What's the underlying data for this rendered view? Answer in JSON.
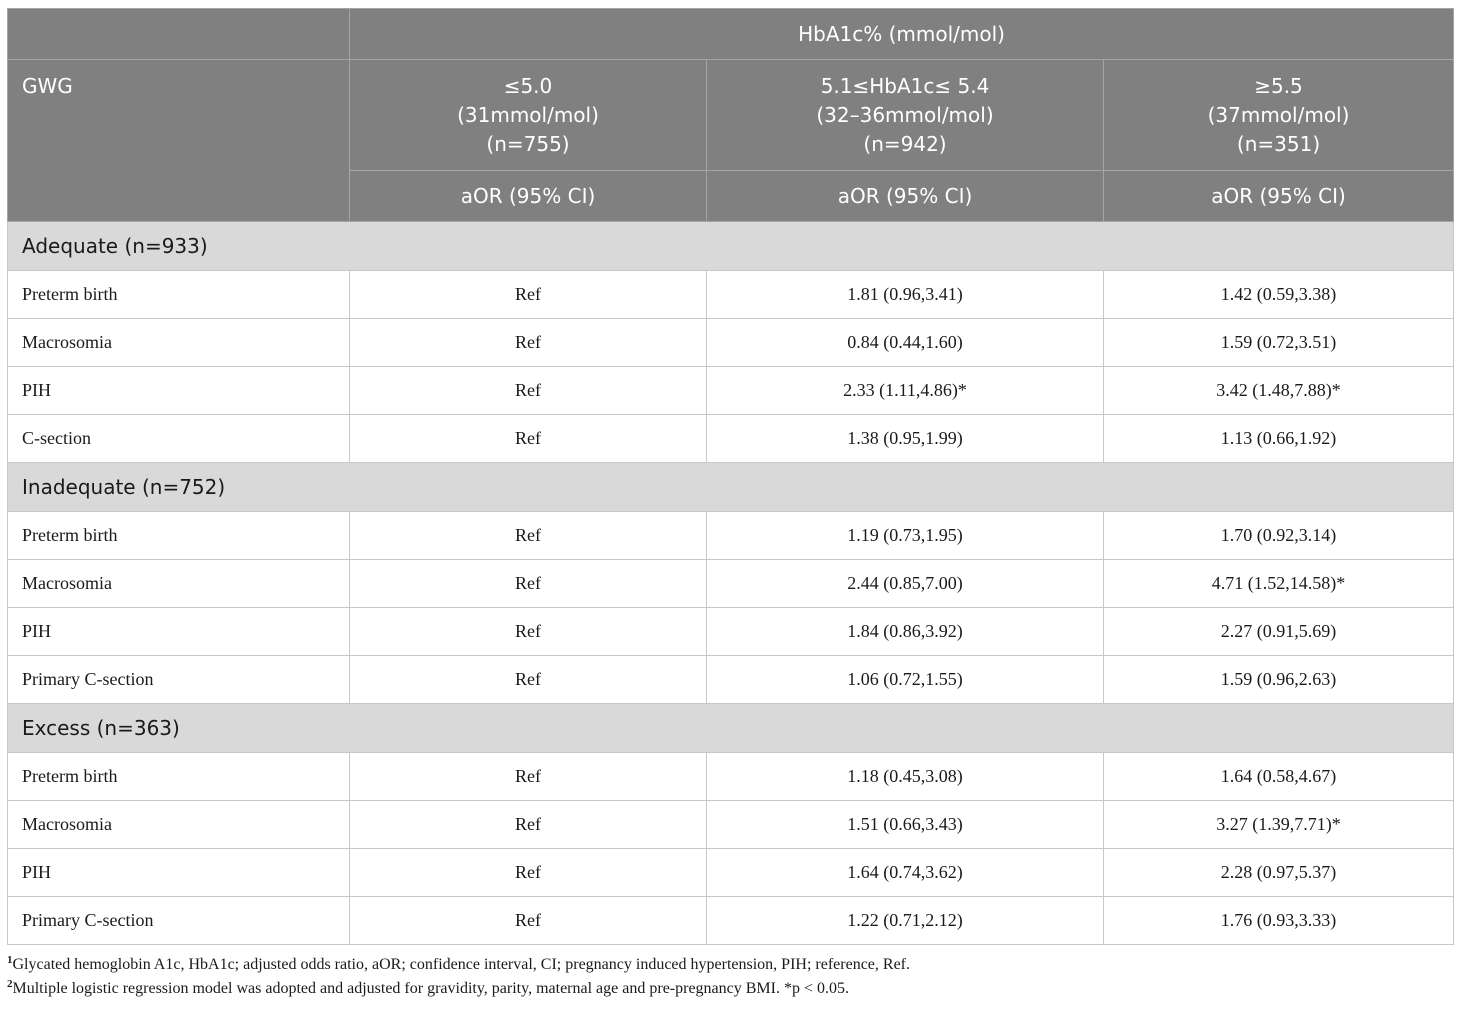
{
  "table": {
    "header": {
      "top": "HbA1c% (mmol/mol)",
      "row_label": "GWG",
      "columns": [
        {
          "lines": [
            "≤5.0",
            "(31mmol/mol)",
            "(n=755)"
          ],
          "sub": "aOR (95% CI)"
        },
        {
          "lines": [
            "5.1≤HbA1c≤ 5.4",
            "(32–36mmol/mol)",
            "(n=942)"
          ],
          "sub": "aOR (95% CI)"
        },
        {
          "lines": [
            "≥5.5",
            "(37mmol/mol)",
            "(n=351)"
          ],
          "sub": "aOR (95% CI)"
        }
      ]
    },
    "groups": [
      {
        "label": "Adequate (n=933)",
        "rows": [
          {
            "label": "Preterm birth",
            "values": [
              "Ref",
              "1.81 (0.96,3.41)",
              "1.42 (0.59,3.38)"
            ]
          },
          {
            "label": "Macrosomia",
            "values": [
              "Ref",
              "0.84 (0.44,1.60)",
              "1.59 (0.72,3.51)"
            ]
          },
          {
            "label": "PIH",
            "values": [
              "Ref",
              "2.33 (1.11,4.86)*",
              "3.42 (1.48,7.88)*"
            ]
          },
          {
            "label": "C-section",
            "values": [
              "Ref",
              "1.38 (0.95,1.99)",
              "1.13 (0.66,1.92)"
            ]
          }
        ]
      },
      {
        "label": "Inadequate (n=752)",
        "rows": [
          {
            "label": "Preterm birth",
            "values": [
              "Ref",
              "1.19 (0.73,1.95)",
              "1.70 (0.92,3.14)"
            ]
          },
          {
            "label": "Macrosomia",
            "values": [
              "Ref",
              "2.44 (0.85,7.00)",
              "4.71 (1.52,14.58)*"
            ]
          },
          {
            "label": "PIH",
            "values": [
              "Ref",
              "1.84 (0.86,3.92)",
              "2.27 (0.91,5.69)"
            ]
          },
          {
            "label": "Primary C-section",
            "values": [
              "Ref",
              "1.06 (0.72,1.55)",
              "1.59 (0.96,2.63)"
            ]
          }
        ]
      },
      {
        "label": "Excess (n=363)",
        "rows": [
          {
            "label": "Preterm birth",
            "values": [
              "Ref",
              "1.18 (0.45,3.08)",
              "1.64 (0.58,4.67)"
            ]
          },
          {
            "label": "Macrosomia",
            "values": [
              "Ref",
              "1.51 (0.66,3.43)",
              "3.27 (1.39,7.71)*"
            ]
          },
          {
            "label": "PIH",
            "values": [
              "Ref",
              "1.64 (0.74,3.62)",
              "2.28 (0.97,5.37)"
            ]
          },
          {
            "label": "Primary C-section",
            "values": [
              "Ref",
              "1.22 (0.71,2.12)",
              "1.76 (0.93,3.33)"
            ]
          }
        ]
      }
    ]
  },
  "footnotes": [
    {
      "mark": "1",
      "text": "Glycated hemoglobin A1c, HbA1c; adjusted odds ratio, aOR; confidence interval, CI; pregnancy induced hypertension, PIH; reference, Ref."
    },
    {
      "mark": "2",
      "text": "Multiple logistic regression model was adopted and adjusted for gravidity, parity, maternal age and pre-pregnancy BMI. *p < 0.05."
    }
  ]
}
